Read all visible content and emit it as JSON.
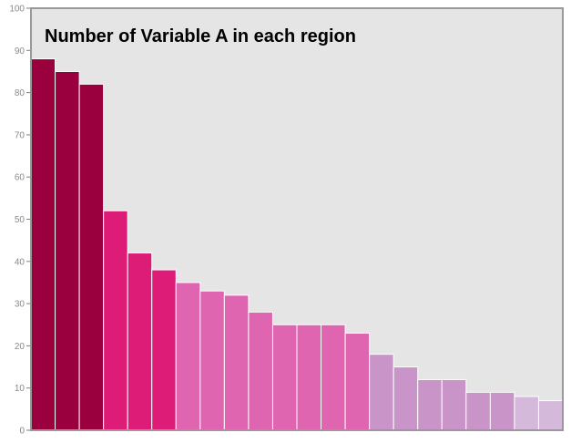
{
  "chart_data": {
    "type": "bar",
    "title": "Number of Variable A in each region",
    "xlabel": "",
    "ylabel": "",
    "ylim": [
      0,
      100
    ],
    "yticks": [
      0,
      10,
      20,
      30,
      40,
      50,
      60,
      70,
      80,
      90,
      100
    ],
    "grid": false,
    "values": [
      88,
      85,
      82,
      52,
      42,
      38,
      35,
      33,
      32,
      28,
      25,
      25,
      25,
      23,
      18,
      15,
      12,
      12,
      9,
      9,
      8,
      7
    ],
    "bar_colors": [
      "#99003d",
      "#99003d",
      "#99003d",
      "#dd1c77",
      "#dd1c77",
      "#dd1c77",
      "#df65b0",
      "#df65b0",
      "#df65b0",
      "#df65b0",
      "#df65b0",
      "#df65b0",
      "#df65b0",
      "#df65b0",
      "#c994c7",
      "#c994c7",
      "#c994c7",
      "#c994c7",
      "#c994c7",
      "#c994c7",
      "#d4b9da",
      "#d4b9da"
    ]
  },
  "colors": {
    "plot_background": "#e5e5e5",
    "frame": "#999999",
    "axis": "#7f7f7f",
    "bar_separator": "#ffffff"
  }
}
